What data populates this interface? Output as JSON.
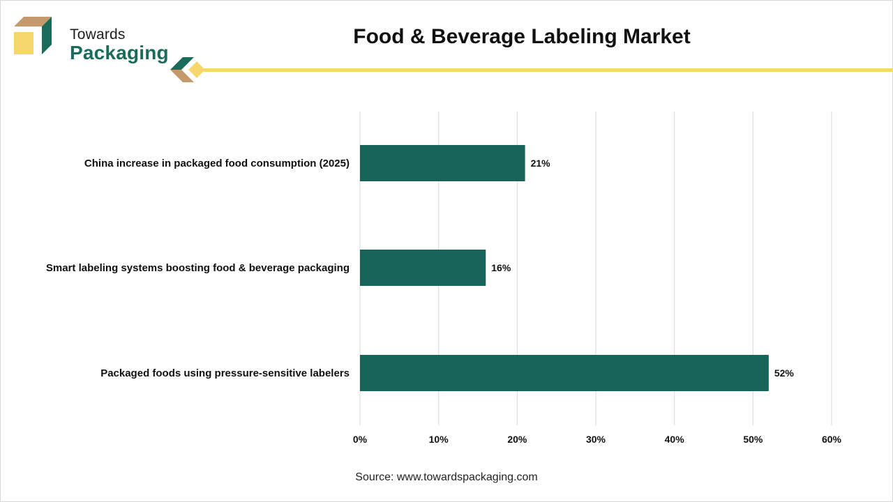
{
  "brand": {
    "line1": "Towards",
    "line2": "Packaging"
  },
  "colors": {
    "bar": "#17635a",
    "grid": "#d9d9d9",
    "accent_yellow": "#f5d76e",
    "brand_green": "#1a6b5a",
    "brand_tan": "#c49a6c"
  },
  "chart_data": {
    "type": "bar",
    "orientation": "horizontal",
    "title": "Food & Beverage Labeling Market",
    "categories": [
      "China increase in packaged food consumption (2025)",
      "Smart labeling systems boosting food & beverage packaging",
      "Packaged foods using pressure-sensitive labelers"
    ],
    "values": [
      21,
      16,
      52
    ],
    "data_labels": [
      "21%",
      "16%",
      "52%"
    ],
    "xlim": [
      0,
      60
    ],
    "xticks": [
      0,
      10,
      20,
      30,
      40,
      50,
      60
    ],
    "xtick_labels": [
      "0%",
      "10%",
      "20%",
      "30%",
      "40%",
      "50%",
      "60%"
    ],
    "xlabel": "",
    "ylabel": "",
    "grid": true,
    "legend": "none"
  },
  "source": "Source: www.towardspackaging.com"
}
